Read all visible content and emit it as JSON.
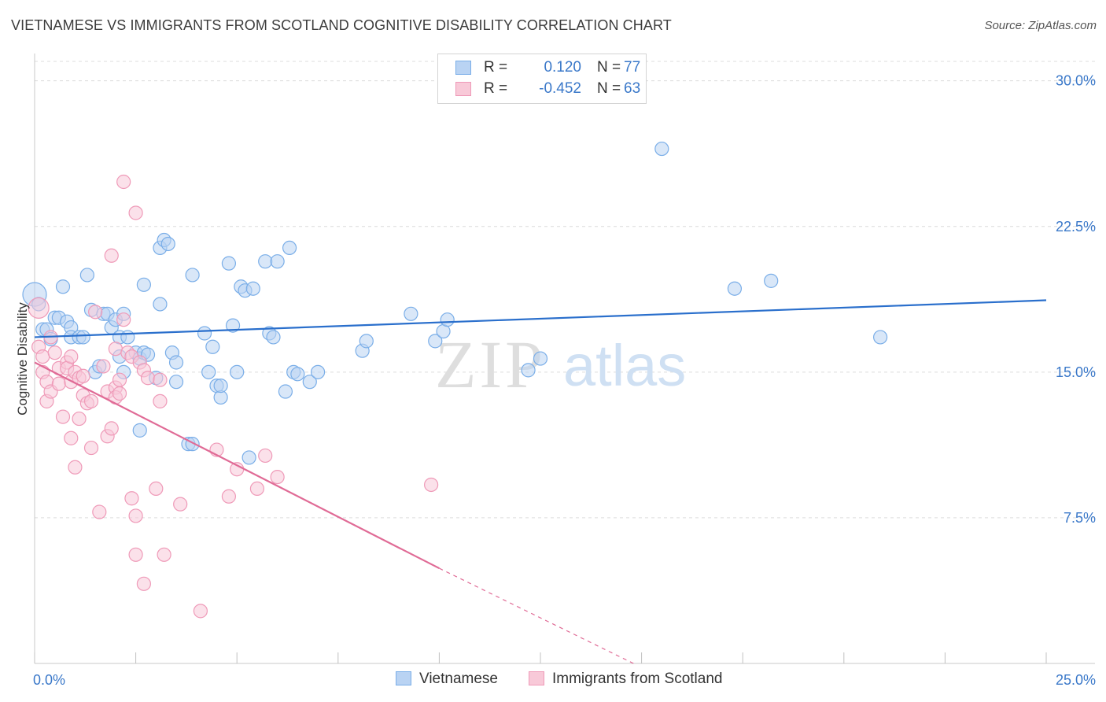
{
  "title": "VIETNAMESE VS IMMIGRANTS FROM SCOTLAND COGNITIVE DISABILITY CORRELATION CHART",
  "source": "Source: ZipAtlas.com",
  "watermark": {
    "zip": "ZIP",
    "atlas": "atlas"
  },
  "legend": {
    "r_label": "R =",
    "n_label": "N =",
    "rows": [
      {
        "series": "Vietnamese",
        "r": "0.120",
        "n": "77",
        "color": "#7aaee8",
        "fill": "#b9d3f3"
      },
      {
        "series": "Immigrants from Scotland",
        "r": "-0.452",
        "n": "63",
        "color": "#ef9ab8",
        "fill": "#f8c9d8"
      }
    ]
  },
  "colors": {
    "blue_line": "#2a6fcc",
    "pink_line": "#e06b96",
    "tick_text": "#3a78c9",
    "grid": "#dcdcdc"
  },
  "chart_data": {
    "type": "scatter",
    "ylabel": "Cognitive Disability",
    "xlim": [
      0,
      25
    ],
    "ylim": [
      0,
      31
    ],
    "x_tick_labels": [
      "0.0%",
      "25.0%"
    ],
    "y_ticks": [
      7.5,
      15.0,
      22.5,
      30.0
    ],
    "y_tick_labels": [
      "7.5%",
      "15.0%",
      "22.5%",
      "30.0%"
    ],
    "grid": true,
    "series": [
      {
        "name": "Vietnamese",
        "points": [
          [
            0.0,
            19.0
          ],
          [
            0.1,
            18.5
          ],
          [
            0.2,
            17.2
          ],
          [
            0.3,
            17.2
          ],
          [
            0.4,
            16.7
          ],
          [
            0.5,
            17.8
          ],
          [
            0.6,
            17.8
          ],
          [
            0.7,
            19.4
          ],
          [
            0.8,
            17.6
          ],
          [
            0.9,
            17.3
          ],
          [
            0.9,
            16.8
          ],
          [
            1.1,
            16.8
          ],
          [
            1.2,
            16.8
          ],
          [
            1.3,
            20.0
          ],
          [
            1.4,
            18.2
          ],
          [
            1.5,
            15.0
          ],
          [
            1.6,
            15.3
          ],
          [
            1.7,
            18.0
          ],
          [
            1.8,
            18.0
          ],
          [
            1.9,
            17.3
          ],
          [
            2.0,
            17.7
          ],
          [
            2.1,
            16.8
          ],
          [
            2.1,
            15.8
          ],
          [
            2.2,
            15.0
          ],
          [
            2.2,
            18.0
          ],
          [
            2.3,
            16.8
          ],
          [
            2.5,
            16.0
          ],
          [
            2.6,
            15.7
          ],
          [
            2.7,
            16.0
          ],
          [
            2.6,
            12.0
          ],
          [
            2.7,
            19.5
          ],
          [
            2.8,
            15.9
          ],
          [
            3.0,
            14.7
          ],
          [
            3.1,
            18.5
          ],
          [
            3.1,
            21.4
          ],
          [
            3.2,
            21.8
          ],
          [
            3.3,
            21.6
          ],
          [
            3.4,
            16.0
          ],
          [
            3.5,
            14.5
          ],
          [
            3.5,
            15.5
          ],
          [
            3.8,
            11.3
          ],
          [
            3.9,
            11.3
          ],
          [
            3.9,
            20.0
          ],
          [
            4.2,
            17.0
          ],
          [
            4.3,
            15.0
          ],
          [
            4.4,
            16.3
          ],
          [
            4.5,
            14.3
          ],
          [
            4.6,
            13.7
          ],
          [
            4.6,
            14.3
          ],
          [
            4.8,
            20.6
          ],
          [
            4.9,
            17.4
          ],
          [
            5.0,
            15.0
          ],
          [
            5.1,
            19.4
          ],
          [
            5.2,
            19.2
          ],
          [
            5.3,
            10.6
          ],
          [
            5.4,
            19.3
          ],
          [
            5.7,
            20.7
          ],
          [
            5.8,
            17.0
          ],
          [
            5.9,
            16.8
          ],
          [
            6.0,
            20.7
          ],
          [
            6.3,
            21.4
          ],
          [
            6.2,
            14.0
          ],
          [
            6.4,
            15.0
          ],
          [
            6.5,
            14.9
          ],
          [
            6.8,
            14.5
          ],
          [
            7.0,
            15.0
          ],
          [
            8.1,
            16.1
          ],
          [
            8.2,
            16.6
          ],
          [
            9.3,
            18.0
          ],
          [
            9.9,
            16.6
          ],
          [
            10.1,
            17.1
          ],
          [
            10.2,
            17.7
          ],
          [
            12.2,
            15.1
          ],
          [
            12.5,
            15.7
          ],
          [
            15.5,
            26.5
          ],
          [
            17.3,
            19.3
          ],
          [
            18.2,
            19.7
          ],
          [
            20.9,
            16.8
          ]
        ],
        "trend": {
          "x": [
            0,
            25
          ],
          "y": [
            16.8,
            18.7
          ]
        }
      },
      {
        "name": "Immigrants from Scotland",
        "points": [
          [
            0.1,
            18.3
          ],
          [
            0.1,
            16.3
          ],
          [
            0.2,
            15.8
          ],
          [
            0.2,
            15.0
          ],
          [
            0.3,
            14.5
          ],
          [
            0.3,
            13.5
          ],
          [
            0.4,
            14.0
          ],
          [
            0.4,
            16.8
          ],
          [
            0.5,
            16.0
          ],
          [
            0.6,
            15.2
          ],
          [
            0.6,
            14.4
          ],
          [
            0.7,
            12.7
          ],
          [
            0.8,
            15.5
          ],
          [
            0.8,
            15.2
          ],
          [
            0.9,
            14.5
          ],
          [
            0.9,
            15.8
          ],
          [
            0.9,
            11.6
          ],
          [
            1.0,
            15.0
          ],
          [
            1.0,
            10.1
          ],
          [
            1.1,
            14.7
          ],
          [
            1.1,
            12.6
          ],
          [
            1.2,
            14.8
          ],
          [
            1.2,
            13.8
          ],
          [
            1.3,
            13.4
          ],
          [
            1.4,
            13.5
          ],
          [
            1.4,
            11.1
          ],
          [
            1.5,
            18.1
          ],
          [
            1.6,
            7.8
          ],
          [
            1.7,
            15.3
          ],
          [
            1.8,
            14.0
          ],
          [
            1.8,
            11.7
          ],
          [
            1.9,
            21.0
          ],
          [
            1.9,
            12.1
          ],
          [
            2.0,
            14.2
          ],
          [
            2.0,
            13.7
          ],
          [
            2.0,
            16.2
          ],
          [
            2.1,
            14.6
          ],
          [
            2.1,
            13.9
          ],
          [
            2.2,
            17.7
          ],
          [
            2.2,
            24.8
          ],
          [
            2.3,
            16.0
          ],
          [
            2.4,
            8.5
          ],
          [
            2.4,
            15.8
          ],
          [
            2.5,
            23.2
          ],
          [
            2.5,
            7.6
          ],
          [
            2.5,
            5.6
          ],
          [
            2.6,
            15.5
          ],
          [
            2.7,
            4.1
          ],
          [
            2.7,
            15.1
          ],
          [
            2.8,
            14.7
          ],
          [
            3.0,
            9.0
          ],
          [
            3.1,
            13.5
          ],
          [
            3.1,
            14.6
          ],
          [
            3.2,
            5.6
          ],
          [
            3.6,
            8.2
          ],
          [
            4.1,
            2.7
          ],
          [
            4.5,
            11.0
          ],
          [
            4.8,
            8.6
          ],
          [
            5.0,
            10.0
          ],
          [
            5.5,
            9.0
          ],
          [
            5.7,
            10.7
          ],
          [
            6.0,
            9.6
          ],
          [
            9.8,
            9.2
          ]
        ],
        "trend": {
          "x": [
            0,
            10.0
          ],
          "y": [
            15.5,
            4.9
          ]
        },
        "trend_extension": {
          "x": [
            10.0,
            14.8
          ],
          "y": [
            4.9,
            0
          ]
        }
      }
    ]
  }
}
